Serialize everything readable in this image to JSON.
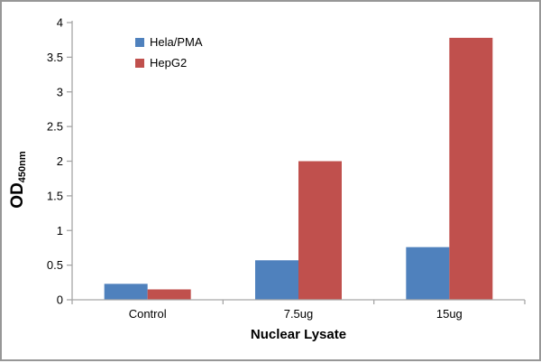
{
  "window": {
    "background": "#ffffff",
    "border_color": "#979797"
  },
  "chart_data": {
    "type": "bar",
    "title": "",
    "categories": [
      "Control",
      "7.5ug",
      "15ug"
    ],
    "series": [
      {
        "name": "Hela/PMA",
        "color": "#4F81BD",
        "values": [
          0.23,
          0.57,
          0.76
        ]
      },
      {
        "name": "HepG2",
        "color": "#C0504D",
        "values": [
          0.15,
          2.0,
          3.78
        ]
      }
    ],
    "xlabel": "Nuclear Lysate",
    "ylabel_main": "OD",
    "ylabel_sub": "450nm",
    "ylim": [
      0,
      4
    ],
    "yticks": [
      "0",
      "0.5",
      "1",
      "1.5",
      "2",
      "2.5",
      "3",
      "3.5",
      "4"
    ],
    "grid": false,
    "legend_position": "inner-top-left",
    "axis_color": "#a6a6a6",
    "text_color": "#000000"
  }
}
